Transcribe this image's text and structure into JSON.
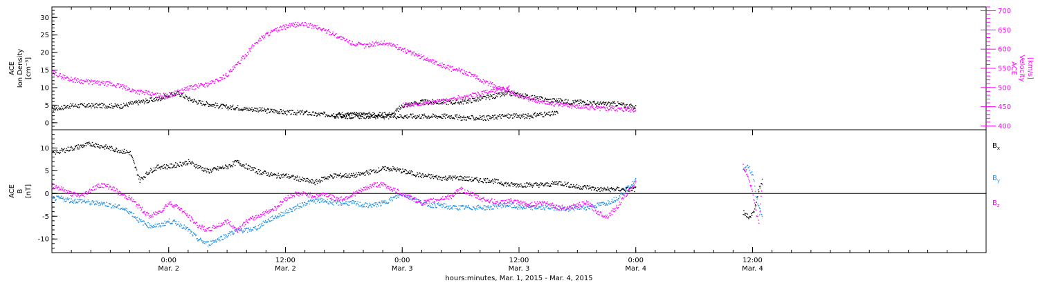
{
  "xaxis": {
    "label": "hours:minutes, Mar.  1, 2015 - Mar.  4, 2015",
    "range_hours": [
      0,
      96
    ],
    "ticks": [
      {
        "h": 12,
        "time": "0:00",
        "day": "Mar. 2"
      },
      {
        "h": 24,
        "time": "12:00",
        "day": "Mar. 2"
      },
      {
        "h": 36,
        "time": "0:00",
        "day": "Mar. 3"
      },
      {
        "h": 48,
        "time": "12:00",
        "day": "Mar. 3"
      },
      {
        "h": 60,
        "time": "0:00",
        "day": "Mar. 4"
      },
      {
        "h": 72,
        "time": "12:00",
        "day": "Mar. 4"
      }
    ]
  },
  "colors": {
    "black": "#000000",
    "magenta": "#ff00ff",
    "blue": "#1e90e6"
  },
  "chart_data": [
    {
      "type": "scatter",
      "panel": "top",
      "left_axis": {
        "label_lines": [
          "ACE",
          "Ion Density",
          "[cm⁻³]"
        ],
        "range": [
          -2,
          33
        ],
        "ticks": [
          0,
          5,
          10,
          15,
          20,
          25,
          30
        ],
        "color": "#000000"
      },
      "right_axis": {
        "label_lines": [
          "ACE",
          "Velocity",
          "[km/s]"
        ],
        "range": [
          390,
          710
        ],
        "ticks": [
          400,
          450,
          500,
          550,
          600,
          650,
          700
        ],
        "color": "#ff00ff"
      },
      "series": [
        {
          "axis": "left",
          "color": "#000000",
          "x": [
            0,
            1,
            2,
            3,
            4,
            5,
            6,
            7,
            8,
            9,
            10,
            11,
            12,
            13,
            14,
            15,
            16,
            17,
            18,
            19,
            20,
            21,
            22,
            23,
            24,
            25,
            26,
            27,
            28,
            29,
            30,
            31,
            32,
            33,
            34,
            35,
            36,
            37,
            38,
            39,
            40,
            41,
            42,
            43,
            44,
            45,
            46,
            47,
            48,
            49,
            50,
            51,
            52,
            53,
            54,
            55,
            56,
            57,
            58,
            59,
            60
          ],
          "y": [
            4,
            4.5,
            5,
            5,
            5,
            5,
            5,
            4.8,
            5.5,
            6,
            6.5,
            7,
            8,
            8.5,
            7,
            6,
            5.5,
            5,
            4.5,
            4.5,
            4,
            4,
            3.5,
            3.5,
            3,
            3,
            3,
            2.5,
            2.5,
            2.5,
            2.5,
            2.5,
            2.5,
            2.5,
            2.5,
            2.5,
            5,
            5.5,
            6,
            6,
            6,
            6,
            6,
            6.5,
            7,
            7.5,
            8,
            8.5,
            8,
            7.5,
            7,
            6.5,
            6.5,
            6,
            6,
            6,
            5.5,
            5.5,
            5.5,
            5,
            4.5
          ]
        },
        {
          "axis": "left",
          "color": "#000000",
          "x": [
            29,
            30,
            31,
            32,
            33,
            34,
            35,
            36,
            37,
            38,
            39,
            40,
            41,
            42,
            43,
            44,
            45,
            46,
            47,
            48,
            49,
            50,
            51,
            52
          ],
          "y": [
            2,
            2,
            2,
            2,
            2,
            1.8,
            2,
            2,
            2,
            2,
            2,
            2,
            2,
            1.5,
            1.5,
            1.5,
            1.5,
            2,
            2,
            2,
            2,
            2.5,
            2.5,
            3
          ]
        },
        {
          "axis": "right",
          "color": "#ff00ff",
          "x": [
            0,
            1,
            2,
            3,
            4,
            5,
            6,
            7,
            8,
            9,
            10,
            11,
            12,
            13,
            14,
            15,
            16,
            17,
            18,
            19,
            20,
            21,
            22,
            23,
            24,
            25,
            26,
            27,
            28,
            29,
            30,
            31,
            32,
            33,
            34,
            35,
            36,
            37,
            38,
            39,
            40,
            41,
            42,
            43,
            44,
            45,
            46,
            47,
            48,
            49,
            50,
            51,
            52,
            53,
            54,
            55,
            56,
            57,
            58,
            59,
            60
          ],
          "y": [
            540,
            530,
            522,
            518,
            515,
            512,
            510,
            505,
            495,
            490,
            485,
            480,
            480,
            490,
            500,
            505,
            510,
            520,
            535,
            560,
            590,
            620,
            640,
            650,
            660,
            665,
            665,
            660,
            650,
            640,
            625,
            615,
            610,
            615,
            618,
            612,
            600,
            590,
            580,
            570,
            560,
            550,
            545,
            535,
            520,
            510,
            500,
            490,
            480,
            472,
            466,
            460,
            458,
            455,
            452,
            450,
            448,
            447,
            446,
            445,
            442
          ]
        },
        {
          "axis": "right",
          "color": "#ff00ff",
          "x": [
            36,
            37,
            38,
            39,
            40,
            41,
            42,
            43,
            44,
            45,
            46,
            47
          ],
          "y": [
            455,
            457,
            460,
            462,
            465,
            470,
            475,
            480,
            485,
            490,
            495,
            500
          ]
        }
      ]
    },
    {
      "type": "scatter",
      "panel": "bottom",
      "left_axis": {
        "label_lines": [
          "ACE",
          "B",
          "[nT]"
        ],
        "range": [
          -13,
          14
        ],
        "ticks": [
          -10,
          -5,
          0,
          5,
          10
        ],
        "color": "#000000"
      },
      "legend": [
        {
          "label": "B",
          "sub": "x",
          "color": "#000000"
        },
        {
          "label": "B",
          "sub": "y",
          "color": "#1e90e6"
        },
        {
          "label": "B",
          "sub": "z",
          "color": "#ff00ff"
        }
      ],
      "series": [
        {
          "name": "Bx",
          "color": "#000000",
          "x": [
            0,
            1,
            2,
            3,
            4,
            5,
            6,
            7,
            8,
            9,
            10,
            11,
            12,
            13,
            14,
            15,
            16,
            17,
            18,
            19,
            20,
            21,
            22,
            23,
            24,
            25,
            26,
            27,
            28,
            29,
            30,
            31,
            32,
            33,
            34,
            35,
            36,
            37,
            38,
            39,
            40,
            41,
            42,
            43,
            44,
            45,
            46,
            47,
            48,
            49,
            50,
            51,
            52,
            53,
            54,
            55,
            56,
            57,
            58,
            59,
            60
          ],
          "y": [
            9,
            9.5,
            10,
            10.5,
            11,
            10.5,
            10,
            9.5,
            9,
            3,
            5,
            6,
            6,
            6.5,
            7,
            6,
            5,
            5.5,
            6,
            7,
            6,
            5,
            4.5,
            4,
            4,
            3.5,
            3,
            2.5,
            3.5,
            4,
            4,
            4,
            4.5,
            5,
            5.5,
            5.5,
            5,
            4.5,
            4,
            3.8,
            3.5,
            3.5,
            3.5,
            3.2,
            3,
            3,
            2.5,
            2,
            2,
            2,
            2,
            2,
            2.5,
            2,
            1.5,
            1.5,
            1,
            1,
            1,
            1,
            1
          ]
        },
        {
          "name": "By",
          "color": "#1e90e6",
          "x": [
            0,
            1,
            2,
            3,
            4,
            5,
            6,
            7,
            8,
            9,
            10,
            11,
            12,
            13,
            14,
            15,
            16,
            17,
            18,
            19,
            20,
            21,
            22,
            23,
            24,
            25,
            26,
            27,
            28,
            29,
            30,
            31,
            32,
            33,
            34,
            35,
            36,
            37,
            38,
            39,
            40,
            41,
            42,
            43,
            44,
            45,
            46,
            47,
            48,
            49,
            50,
            51,
            52,
            53,
            54,
            55,
            56,
            57,
            58,
            59,
            60
          ],
          "y": [
            -1,
            -1,
            -1.5,
            -1.5,
            -2,
            -2,
            -2.5,
            -3,
            -4,
            -6,
            -7,
            -7,
            -6,
            -6.5,
            -8,
            -10,
            -11,
            -10,
            -9,
            -8,
            -8,
            -7.5,
            -6,
            -5,
            -4,
            -3,
            -2,
            -1.5,
            -1.5,
            -2,
            -2,
            -2,
            -2.5,
            -2.5,
            -2,
            -1,
            0,
            -1,
            -2,
            -2.5,
            -2.5,
            -3,
            -3,
            -3,
            -3,
            -3,
            -2.5,
            -2.5,
            -3,
            -3,
            -3,
            -3,
            -3,
            -3.5,
            -3,
            -3,
            -2.5,
            -2,
            -1,
            1,
            3
          ]
        },
        {
          "name": "Bz",
          "color": "#ff00ff",
          "x": [
            0,
            1,
            2,
            3,
            4,
            5,
            6,
            7,
            8,
            9,
            10,
            11,
            12,
            13,
            14,
            15,
            16,
            17,
            18,
            19,
            20,
            21,
            22,
            23,
            24,
            25,
            26,
            27,
            28,
            29,
            30,
            31,
            32,
            33,
            34,
            35,
            36,
            37,
            38,
            39,
            40,
            41,
            42,
            43,
            44,
            45,
            46,
            47,
            48,
            49,
            50,
            51,
            52,
            53,
            54,
            55,
            56,
            57,
            58,
            59,
            60
          ],
          "y": [
            2,
            1,
            0,
            -0.5,
            1,
            2,
            1.5,
            0,
            -1,
            -3,
            -5,
            -4,
            -2,
            -3,
            -5,
            -7,
            -8,
            -7,
            -6,
            -8,
            -6,
            -5,
            -4,
            -3,
            -1,
            0,
            0,
            -0.5,
            0,
            -1,
            -1,
            0,
            1,
            2,
            2,
            1,
            0,
            -1,
            -2,
            -1.5,
            -1,
            -0.5,
            1,
            0,
            -1,
            -1.5,
            -2,
            -1.5,
            -2,
            -2.5,
            -2,
            -2,
            -3,
            -3,
            -2.5,
            -2,
            -4,
            -5,
            -3,
            0,
            2.5
          ]
        },
        {
          "name": "Bx",
          "color": "#000000",
          "x": [
            71,
            71.5,
            72,
            72.3,
            72.6,
            73
          ],
          "y": [
            -4,
            -5,
            -4.5,
            -2,
            1,
            3
          ]
        },
        {
          "name": "By",
          "color": "#1e90e6",
          "x": [
            71,
            71.5,
            72,
            72.3,
            72.6,
            73
          ],
          "y": [
            5,
            6,
            4,
            0,
            -3,
            -5
          ]
        },
        {
          "name": "Bz",
          "color": "#ff00ff",
          "x": [
            71,
            71.5,
            72,
            72.3,
            72.6,
            73
          ],
          "y": [
            6,
            4,
            0,
            -4,
            -6,
            3
          ]
        }
      ]
    }
  ]
}
